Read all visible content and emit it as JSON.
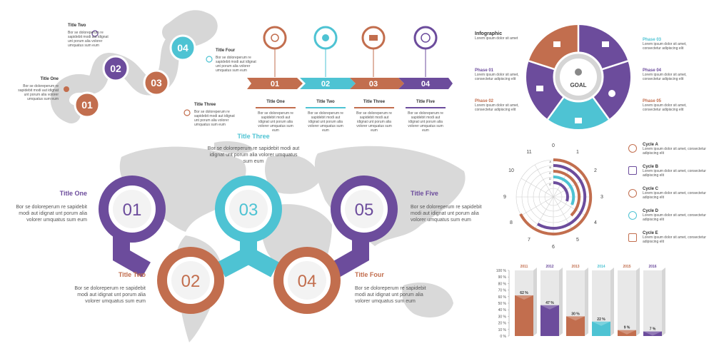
{
  "colors": {
    "purple": "#6c4c9c",
    "orange": "#c26e4e",
    "cyan": "#4ec3d3",
    "gray": "#d5d5d5"
  },
  "snake": {
    "steps": [
      "01",
      "02",
      "03",
      "04"
    ],
    "items": [
      {
        "title": "Title One",
        "text": "Bor se doloreperum re sapidebit modi aut idignat unt porum alia volorer umquatus sum eum"
      },
      {
        "title": "Title Two",
        "text": "Bor se doloreperum re sapidebit modi aut idignat unt porum alia volorer umquatus sum eum"
      },
      {
        "title": "Title Three",
        "text": "Bor se doloreperum re sapidebit modi aut idignat unt porum alia volorer umquatus sum eum"
      },
      {
        "title": "Title Four",
        "text": "Bor se doloreperum re sapidebit modi aut idignat unt porum alia volorer umquatus sum eum"
      }
    ]
  },
  "timeline": {
    "steps": [
      "01",
      "02",
      "03",
      "04"
    ],
    "items": [
      {
        "title": "Title One",
        "text": "Bor se doloreperum re sapidebit modi aut idignat unt porum alia volorer umquatus sum eum"
      },
      {
        "title": "Title Two",
        "text": "Bor se doloreperum re sapidebit modi aut idignat unt porum alia volorer umquatus sum eum"
      },
      {
        "title": "Title Three",
        "text": "Bor se doloreperum re sapidebit modi aut idignat unt porum alia volorer umquatus sum eum"
      },
      {
        "title": "Title Five",
        "text": "Bor se doloreperum re sapidebit modi aut idignat unt porum alia volorer umquatus sum eum"
      }
    ]
  },
  "puzzle": {
    "header_title": "Infographic",
    "header_text": "Lorem ipsum dolor sit amet",
    "center_label": "GOAL",
    "phases": [
      {
        "title": "Phase 01",
        "text": "Lorem ipsum dolor sit amet, consectetur adipiscing elit"
      },
      {
        "title": "Phase 02",
        "text": "Lorem ipsum dolor sit amet, consectetur adipiscing elit"
      },
      {
        "title": "Phase 03",
        "text": "Lorem ipsum dolor sit amet, consectetur adipiscing elit"
      },
      {
        "title": "Phase 04",
        "text": "Lorem ipsum dolor sit amet, consectetur adipiscing elit"
      },
      {
        "title": "Phase 05",
        "text": "Lorem ipsum dolor sit amet, consectetur adipiscing elit"
      }
    ]
  },
  "map": {
    "steps": [
      "01",
      "02",
      "03",
      "04",
      "05"
    ],
    "items": [
      {
        "title": "Title One",
        "text": "Bor se doloreperum re sapidebit modi aut idignat unt porum alia volorer umquatus sum eum"
      },
      {
        "title": "Title Two",
        "text": "Bor se doloreperum re sapidebit modi aut idignat unt porum alia volorer umquatus sum eum"
      },
      {
        "title": "Title Three",
        "text": "Bor se doloreperum re sapidebit modi aut idignat unt porum alia volorer umquatus sum eum"
      },
      {
        "title": "Title Four",
        "text": "Bor se doloreperum re sapidebit modi aut idignat unt porum alia volorer umquatus sum eum"
      },
      {
        "title": "Title Five",
        "text": "Bor se doloreperum re sapidebit modi aut idignat unt porum alia volorer umquatus sum eum"
      }
    ]
  },
  "radial": {
    "clock": [
      "0",
      "1",
      "2",
      "3",
      "4",
      "5",
      "6",
      "7",
      "8",
      "9",
      "10",
      "11"
    ],
    "ring_letters": [
      "A",
      "B",
      "C",
      "D",
      "E"
    ],
    "cycles": [
      {
        "title": "Cycle A",
        "text": "Lorem ipsum dolor sit amet, consectetur adipiscing elit"
      },
      {
        "title": "Cycle B",
        "text": "Lorem ipsum dolor sit amet, consectetur adipiscing elit"
      },
      {
        "title": "Cycle C",
        "text": "Lorem ipsum dolor sit amet, consectetur adipiscing elit"
      },
      {
        "title": "Cycle D",
        "text": "Lorem ipsum dolor sit amet, consectetur adipiscing elit"
      },
      {
        "title": "Cycle E",
        "text": "Lorem ipsum dolor sit amet, consectetur adipiscing elit"
      }
    ]
  },
  "chart_data": {
    "type": "bar",
    "categories": [
      "2011",
      "2012",
      "2013",
      "2014",
      "2015",
      "2016"
    ],
    "values": [
      62,
      47,
      30,
      22,
      9,
      7
    ],
    "value_labels": [
      "62 %",
      "47 %",
      "30 %",
      "22 %",
      "9 %",
      "7 %"
    ],
    "bar_colors": [
      "#c26e4e",
      "#6c4c9c",
      "#c26e4e",
      "#4ec3d3",
      "#c26e4e",
      "#6c4c9c"
    ],
    "yticks": [
      "0 %",
      "10 %",
      "20 %",
      "30 %",
      "40 %",
      "50 %",
      "60 %",
      "70 %",
      "80 %",
      "90 %",
      "100 %"
    ],
    "ylim": [
      0,
      100
    ],
    "grid": true
  }
}
